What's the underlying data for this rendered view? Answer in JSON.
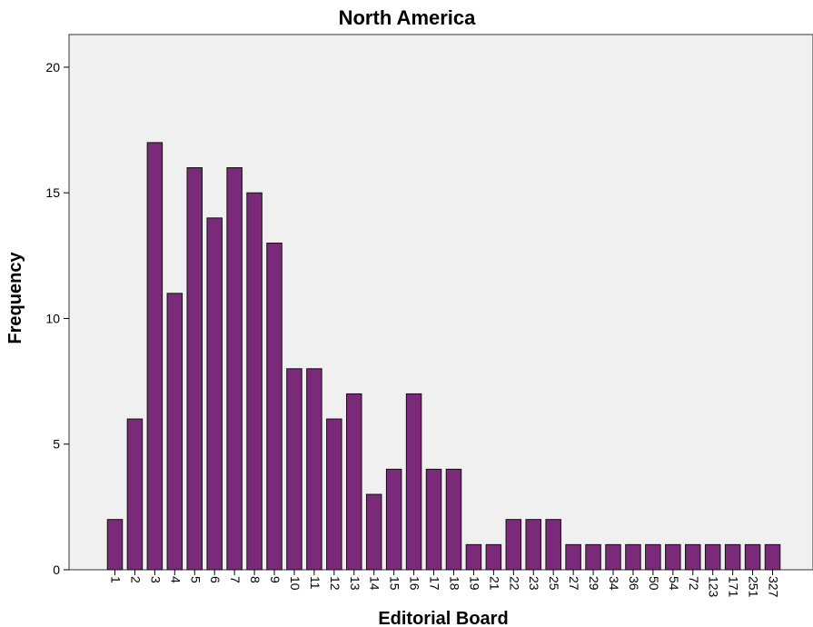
{
  "chart_data": {
    "type": "bar",
    "title": "North America",
    "xlabel": "Editorial Board",
    "ylabel": "Frequency",
    "categories": [
      "1",
      "2",
      "3",
      "4",
      "5",
      "6",
      "7",
      "8",
      "9",
      "10",
      "11",
      "12",
      "13",
      "14",
      "15",
      "16",
      "17",
      "18",
      "19",
      "21",
      "22",
      "23",
      "25",
      "27",
      "29",
      "34",
      "36",
      "50",
      "54",
      "72",
      "123",
      "171",
      "251",
      "327"
    ],
    "values": [
      2,
      6,
      17,
      11,
      16,
      14,
      16,
      15,
      13,
      8,
      8,
      6,
      7,
      3,
      4,
      7,
      4,
      4,
      1,
      1,
      2,
      2,
      2,
      1,
      1,
      1,
      1,
      1,
      1,
      1,
      1,
      1,
      1,
      1
    ],
    "y_ticks": [
      "0",
      "5",
      "10",
      "15",
      "20"
    ],
    "ylim": [
      0,
      21.3
    ],
    "grid": false,
    "legend": "none",
    "colors": {
      "bar_fill": "#7a2a78",
      "bar_stroke": "#111111",
      "plot_background": "#f0f0f0",
      "plot_border": "#333333"
    }
  }
}
